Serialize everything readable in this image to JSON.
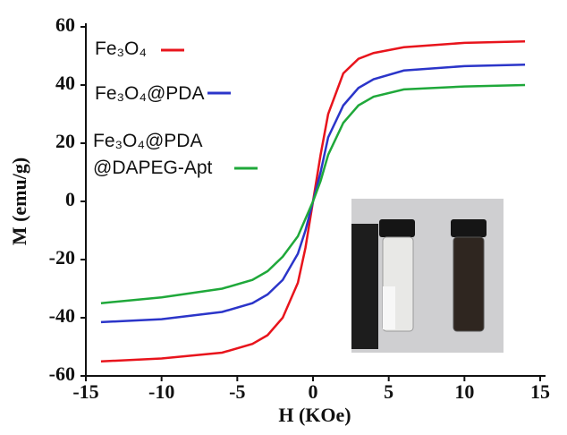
{
  "chart_data": {
    "type": "line",
    "xlabel": "H (KOe)",
    "ylabel": "M (emu/g)",
    "x": [
      -14,
      -10,
      -6,
      -4,
      -3,
      -2,
      -1,
      -0.5,
      0,
      0.5,
      1,
      2,
      3,
      4,
      6,
      10,
      14
    ],
    "series": [
      {
        "name": "Fe₃O₄",
        "color": "#e8141c",
        "values": [
          -55,
          -54,
          -52,
          -49,
          -46,
          -40,
          -28,
          -16,
          0,
          16,
          30,
          44,
          49,
          51,
          53,
          54.5,
          55
        ]
      },
      {
        "name": "Fe₃O₄@PDA",
        "color": "#2b35c9",
        "values": [
          -41.5,
          -40.5,
          -38,
          -35,
          -32,
          -27,
          -18,
          -10,
          0,
          10,
          22,
          33,
          39,
          42,
          45,
          46.5,
          47
        ]
      },
      {
        "name": "Fe₃O₄@PDA\n@DAPEG-Apt",
        "color": "#1fa83a",
        "values": [
          -35,
          -33,
          -30,
          -27,
          -24,
          -19,
          -12,
          -6,
          0,
          7,
          16,
          27,
          33,
          36,
          38.5,
          39.5,
          40
        ]
      }
    ],
    "xlim": [
      -15,
      15
    ],
    "xticks": [
      -15,
      -10,
      -5,
      0,
      5,
      10,
      15
    ],
    "ylim": [
      -60,
      60
    ],
    "yticks": [
      -60,
      -40,
      -20,
      0,
      20,
      40,
      60
    ]
  }
}
